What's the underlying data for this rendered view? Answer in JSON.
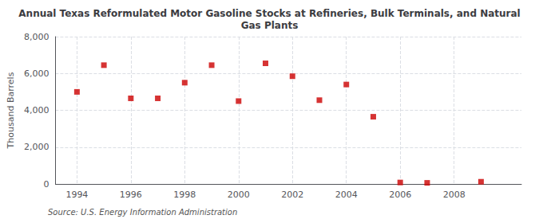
{
  "chart_data": {
    "type": "scatter",
    "title": "Annual Texas Reformulated Motor Gasoline Stocks at Refineries, Bulk Terminals, and Natural\nGas Plants",
    "ylabel": "Thousand Barrels",
    "annotations": [
      "Source: U.S. Energy Information Administration"
    ],
    "x": [
      1994,
      1995,
      1996,
      1997,
      1998,
      1999,
      2000,
      2001,
      2002,
      2003,
      2004,
      2005,
      2006,
      2007,
      2009
    ],
    "values": [
      5000,
      6450,
      4650,
      4650,
      5500,
      6450,
      4500,
      6550,
      5850,
      4550,
      5400,
      3650,
      80,
      60,
      120
    ],
    "color": "#cc0000",
    "marker": "square",
    "xlim": [
      1993.2,
      2010.5
    ],
    "xticks": [
      1994,
      1996,
      1998,
      2000,
      2002,
      2004,
      2006,
      2008
    ],
    "ylim": [
      0,
      8000
    ],
    "yticks": [
      0,
      {
        "value": 2000,
        "label": "2,000"
      },
      {
        "value": 4000,
        "label": "4,000"
      },
      {
        "value": 6000,
        "label": "6,000"
      },
      {
        "value": 8000,
        "label": "8,000"
      }
    ],
    "grid": true
  }
}
